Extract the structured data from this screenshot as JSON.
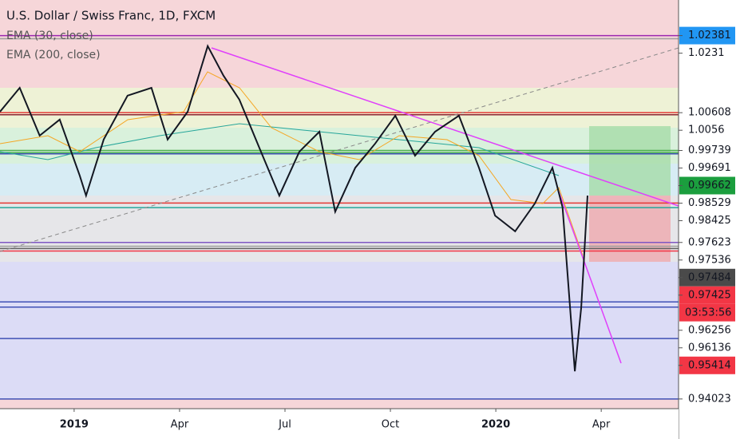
{
  "chart_data": {
    "type": "line",
    "title": "U.S. Dollar / Swiss Franc, 1D, FXCM",
    "indicators": [
      "EMA (30, close)",
      "EMA (200, close)"
    ],
    "countdown": "03:53:56",
    "countdown_background": "#f23645",
    "x": [
      -2.11,
      -1.55,
      -0.98,
      -0.41,
      0.16,
      0.34,
      0.84,
      1.52,
      2.2,
      2.66,
      3.23,
      3.8,
      4.25,
      4.7,
      5.27,
      5.84,
      6.41,
      6.98,
      7.43,
      8.0,
      8.57,
      9.14,
      9.7,
      10.27,
      10.95,
      11.52,
      11.98,
      12.55,
      13.11,
      13.61,
      13.9,
      14.25,
      14.43,
      14.61
    ],
    "series": [
      {
        "color": "#131722",
        "values": [
          1.0063,
          1.0118,
          1.0008,
          1.0045,
          0.9916,
          0.987,
          0.9999,
          1.01,
          1.0118,
          0.9999,
          1.0063,
          1.0214,
          1.0146,
          1.0091,
          0.998,
          0.987,
          0.9971,
          1.0017,
          0.9833,
          0.9934,
          0.999,
          1.0054,
          0.9962,
          1.0017,
          1.0054,
          0.9934,
          0.9824,
          0.9788,
          0.9852,
          0.9934,
          0.9843,
          0.9466,
          0.9613,
          0.987
        ]
      }
    ],
    "xlim": [
      -2.11,
      17.2
    ],
    "xticks": [
      {
        "value": 0,
        "label": "2019"
      },
      {
        "value": 3,
        "label": "Apr"
      },
      {
        "value": 6,
        "label": "Jul"
      },
      {
        "value": 9,
        "label": "Oct"
      },
      {
        "value": 12,
        "label": "2020"
      },
      {
        "value": 15,
        "label": "Apr"
      }
    ],
    "ylim": [
      0.938,
      1.032
    ],
    "yticks": [
      1.02381,
      1.0231,
      1.00608,
      1.0056,
      0.99739,
      0.99691,
      0.99662,
      0.98529,
      0.98425,
      0.97623,
      0.97536,
      0.97484,
      0.97425,
      0.96256,
      0.96136,
      0.95414,
      0.94023
    ],
    "label_backgrounds": [
      "#2196f3",
      "#ffffff",
      "#ffffff",
      "#ffffff",
      "#ffffff",
      "#ffffff",
      "#1b9e3e",
      "#ffffff",
      "#ffffff",
      "#ffffff",
      "#ffffff",
      "#4a4a4a",
      "#f23645",
      "#ffffff",
      "#ffffff",
      "#f23645",
      "#ffffff"
    ],
    "line_colors": [
      "#9c27b0",
      "#9e9e9e",
      "#e53935",
      "#8e2430",
      "#4caf50",
      "#4caf50",
      "#3f51b5",
      "#e53935",
      "#26a69a",
      "#7e57c2",
      "#9e9e9e",
      "#616161",
      "#f23645",
      "#3f51b5",
      "#3f51b5",
      "#3f51b5",
      "#3f51b5"
    ]
  }
}
